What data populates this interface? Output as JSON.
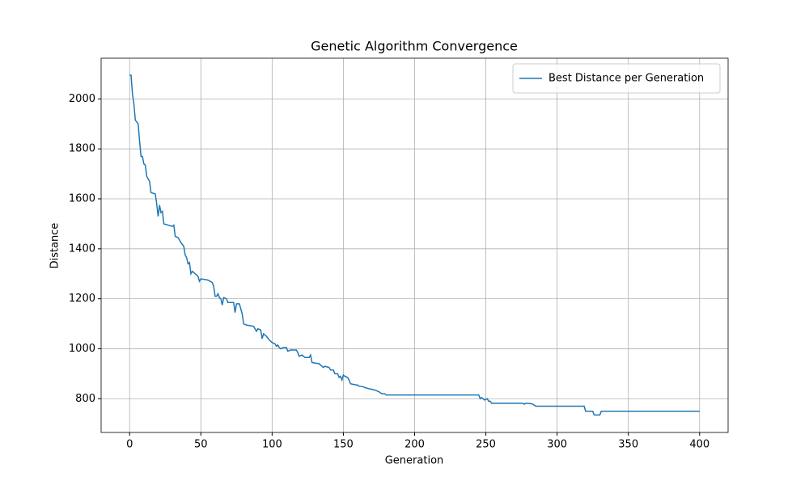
{
  "chart_data": {
    "type": "line",
    "title": "Genetic Algorithm Convergence",
    "x_label": "Generation",
    "y_label": "Distance",
    "x": [
      0,
      1,
      2,
      3,
      4,
      6,
      7,
      8,
      9,
      10,
      11,
      12,
      14,
      15,
      18,
      19,
      20,
      21,
      22,
      23,
      24,
      27,
      30,
      31,
      32,
      34,
      36,
      38,
      39,
      40,
      41,
      42,
      43,
      44,
      46,
      48,
      49,
      50,
      55,
      58,
      59,
      60,
      61,
      62,
      63,
      64,
      65,
      66,
      68,
      69,
      73,
      74,
      75,
      77,
      78,
      79,
      80,
      82,
      87,
      88,
      89,
      90,
      92,
      93,
      94,
      96,
      98,
      100,
      102,
      103,
      104,
      105,
      106,
      108,
      110,
      111,
      113,
      117,
      118,
      119,
      121,
      123,
      126,
      127,
      128,
      133,
      134,
      136,
      137,
      140,
      141,
      143,
      144,
      146,
      147,
      148,
      149,
      150,
      151,
      153,
      154,
      155,
      159,
      160,
      161,
      164,
      165,
      168,
      172,
      175,
      177,
      179,
      180,
      245,
      246,
      247,
      248,
      249,
      251,
      252,
      253,
      254,
      276,
      277,
      278,
      282,
      283,
      285,
      319,
      320,
      325,
      326,
      330,
      331,
      400
    ],
    "series": [
      {
        "name": "Best Distance per Generation",
        "color": "#1f77b4",
        "values": [
          2095,
          2095,
          2020,
          1980,
          1915,
          1900,
          1830,
          1770,
          1770,
          1740,
          1735,
          1690,
          1670,
          1625,
          1620,
          1580,
          1530,
          1575,
          1545,
          1550,
          1500,
          1495,
          1490,
          1495,
          1450,
          1445,
          1425,
          1410,
          1375,
          1365,
          1340,
          1345,
          1300,
          1310,
          1300,
          1290,
          1270,
          1280,
          1275,
          1265,
          1250,
          1210,
          1210,
          1220,
          1205,
          1200,
          1175,
          1205,
          1200,
          1185,
          1185,
          1145,
          1180,
          1180,
          1160,
          1140,
          1100,
          1095,
          1090,
          1080,
          1070,
          1080,
          1075,
          1040,
          1060,
          1050,
          1035,
          1025,
          1020,
          1010,
          1015,
          1005,
          1000,
          1005,
          1005,
          990,
          995,
          995,
          985,
          970,
          975,
          965,
          965,
          975,
          945,
          940,
          935,
          925,
          930,
          925,
          915,
          915,
          900,
          900,
          885,
          890,
          875,
          895,
          890,
          885,
          875,
          860,
          855,
          855,
          850,
          848,
          845,
          840,
          835,
          828,
          820,
          820,
          815,
          815,
          800,
          805,
          800,
          795,
          800,
          790,
          790,
          782,
          782,
          778,
          782,
          780,
          778,
          770,
          770,
          750,
          750,
          735,
          735,
          750,
          750
        ]
      }
    ],
    "xlim": [
      -20,
      420
    ],
    "ylim": [
      665,
      2163
    ],
    "xticks": [
      0,
      50,
      100,
      150,
      200,
      250,
      300,
      350,
      400
    ],
    "yticks": [
      800,
      1000,
      1200,
      1400,
      1600,
      1800,
      2000
    ],
    "grid": true,
    "legend": "upper right"
  }
}
